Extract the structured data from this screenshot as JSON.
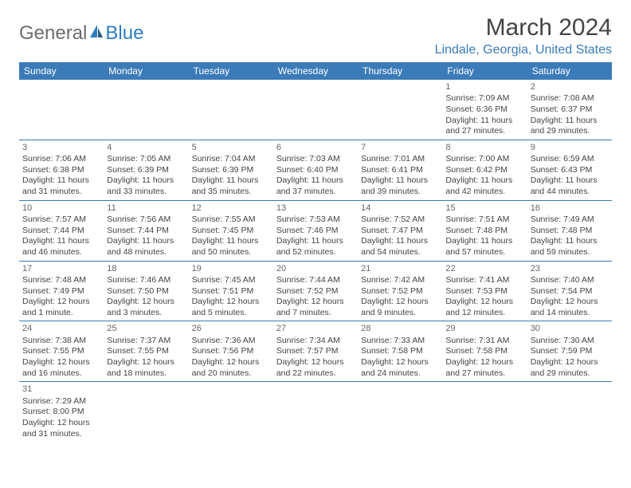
{
  "logo": {
    "text1": "General",
    "text2": "Blue"
  },
  "title": "March 2024",
  "location": "Lindale, Georgia, United States",
  "weekdays": [
    "Sunday",
    "Monday",
    "Tuesday",
    "Wednesday",
    "Thursday",
    "Friday",
    "Saturday"
  ],
  "colors": {
    "header_bg": "#3a7bb8",
    "header_text": "#ffffff",
    "accent": "#3a7bb8",
    "body_text": "#444444",
    "logo_gray": "#6b6b6b",
    "logo_blue": "#2e7cc0"
  },
  "sunrise_prefix": "Sunrise: ",
  "sunset_prefix": "Sunset: ",
  "daylight_prefix": "Daylight: ",
  "weeks": [
    [
      null,
      null,
      null,
      null,
      null,
      {
        "d": "1",
        "sr": "7:09 AM",
        "ss": "6:36 PM",
        "dl1": "11 hours",
        "dl2": "and 27 minutes."
      },
      {
        "d": "2",
        "sr": "7:08 AM",
        "ss": "6:37 PM",
        "dl1": "11 hours",
        "dl2": "and 29 minutes."
      }
    ],
    [
      {
        "d": "3",
        "sr": "7:06 AM",
        "ss": "6:38 PM",
        "dl1": "11 hours",
        "dl2": "and 31 minutes."
      },
      {
        "d": "4",
        "sr": "7:05 AM",
        "ss": "6:39 PM",
        "dl1": "11 hours",
        "dl2": "and 33 minutes."
      },
      {
        "d": "5",
        "sr": "7:04 AM",
        "ss": "6:39 PM",
        "dl1": "11 hours",
        "dl2": "and 35 minutes."
      },
      {
        "d": "6",
        "sr": "7:03 AM",
        "ss": "6:40 PM",
        "dl1": "11 hours",
        "dl2": "and 37 minutes."
      },
      {
        "d": "7",
        "sr": "7:01 AM",
        "ss": "6:41 PM",
        "dl1": "11 hours",
        "dl2": "and 39 minutes."
      },
      {
        "d": "8",
        "sr": "7:00 AM",
        "ss": "6:42 PM",
        "dl1": "11 hours",
        "dl2": "and 42 minutes."
      },
      {
        "d": "9",
        "sr": "6:59 AM",
        "ss": "6:43 PM",
        "dl1": "11 hours",
        "dl2": "and 44 minutes."
      }
    ],
    [
      {
        "d": "10",
        "sr": "7:57 AM",
        "ss": "7:44 PM",
        "dl1": "11 hours",
        "dl2": "and 46 minutes."
      },
      {
        "d": "11",
        "sr": "7:56 AM",
        "ss": "7:44 PM",
        "dl1": "11 hours",
        "dl2": "and 48 minutes."
      },
      {
        "d": "12",
        "sr": "7:55 AM",
        "ss": "7:45 PM",
        "dl1": "11 hours",
        "dl2": "and 50 minutes."
      },
      {
        "d": "13",
        "sr": "7:53 AM",
        "ss": "7:46 PM",
        "dl1": "11 hours",
        "dl2": "and 52 minutes."
      },
      {
        "d": "14",
        "sr": "7:52 AM",
        "ss": "7:47 PM",
        "dl1": "11 hours",
        "dl2": "and 54 minutes."
      },
      {
        "d": "15",
        "sr": "7:51 AM",
        "ss": "7:48 PM",
        "dl1": "11 hours",
        "dl2": "and 57 minutes."
      },
      {
        "d": "16",
        "sr": "7:49 AM",
        "ss": "7:48 PM",
        "dl1": "11 hours",
        "dl2": "and 59 minutes."
      }
    ],
    [
      {
        "d": "17",
        "sr": "7:48 AM",
        "ss": "7:49 PM",
        "dl1": "12 hours",
        "dl2": "and 1 minute."
      },
      {
        "d": "18",
        "sr": "7:46 AM",
        "ss": "7:50 PM",
        "dl1": "12 hours",
        "dl2": "and 3 minutes."
      },
      {
        "d": "19",
        "sr": "7:45 AM",
        "ss": "7:51 PM",
        "dl1": "12 hours",
        "dl2": "and 5 minutes."
      },
      {
        "d": "20",
        "sr": "7:44 AM",
        "ss": "7:52 PM",
        "dl1": "12 hours",
        "dl2": "and 7 minutes."
      },
      {
        "d": "21",
        "sr": "7:42 AM",
        "ss": "7:52 PM",
        "dl1": "12 hours",
        "dl2": "and 9 minutes."
      },
      {
        "d": "22",
        "sr": "7:41 AM",
        "ss": "7:53 PM",
        "dl1": "12 hours",
        "dl2": "and 12 minutes."
      },
      {
        "d": "23",
        "sr": "7:40 AM",
        "ss": "7:54 PM",
        "dl1": "12 hours",
        "dl2": "and 14 minutes."
      }
    ],
    [
      {
        "d": "24",
        "sr": "7:38 AM",
        "ss": "7:55 PM",
        "dl1": "12 hours",
        "dl2": "and 16 minutes."
      },
      {
        "d": "25",
        "sr": "7:37 AM",
        "ss": "7:55 PM",
        "dl1": "12 hours",
        "dl2": "and 18 minutes."
      },
      {
        "d": "26",
        "sr": "7:36 AM",
        "ss": "7:56 PM",
        "dl1": "12 hours",
        "dl2": "and 20 minutes."
      },
      {
        "d": "27",
        "sr": "7:34 AM",
        "ss": "7:57 PM",
        "dl1": "12 hours",
        "dl2": "and 22 minutes."
      },
      {
        "d": "28",
        "sr": "7:33 AM",
        "ss": "7:58 PM",
        "dl1": "12 hours",
        "dl2": "and 24 minutes."
      },
      {
        "d": "29",
        "sr": "7:31 AM",
        "ss": "7:58 PM",
        "dl1": "12 hours",
        "dl2": "and 27 minutes."
      },
      {
        "d": "30",
        "sr": "7:30 AM",
        "ss": "7:59 PM",
        "dl1": "12 hours",
        "dl2": "and 29 minutes."
      }
    ],
    [
      {
        "d": "31",
        "sr": "7:29 AM",
        "ss": "8:00 PM",
        "dl1": "12 hours",
        "dl2": "and 31 minutes."
      },
      null,
      null,
      null,
      null,
      null,
      null
    ]
  ]
}
